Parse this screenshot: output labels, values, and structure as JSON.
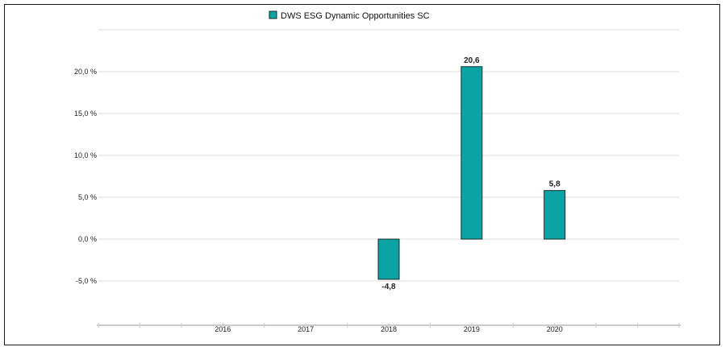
{
  "chart_data": {
    "type": "bar",
    "categories": [
      "2016",
      "2017",
      "2018",
      "2019",
      "2020"
    ],
    "series": [
      {
        "name": "DWS ESG Dynamic Opportunities  SC",
        "values": [
          null,
          null,
          -4.8,
          20.6,
          5.8
        ],
        "value_labels": [
          "",
          "",
          "-4,8",
          "20,6",
          "5,8"
        ]
      }
    ],
    "yticks": [
      -5,
      0,
      5,
      10,
      15,
      20
    ],
    "ytick_labels": [
      "-5,0 %",
      "0,0 %",
      "5,0 %",
      "10,0 %",
      "15,0 %",
      "20,0 %"
    ],
    "ylim": [
      -10,
      25
    ],
    "legend": "top-center",
    "grid": true,
    "colors": {
      "bar": "#0ba3a3",
      "bar_edge": "#1a2a2a",
      "grid": "#dddddd",
      "axis": "#cccccc"
    }
  }
}
